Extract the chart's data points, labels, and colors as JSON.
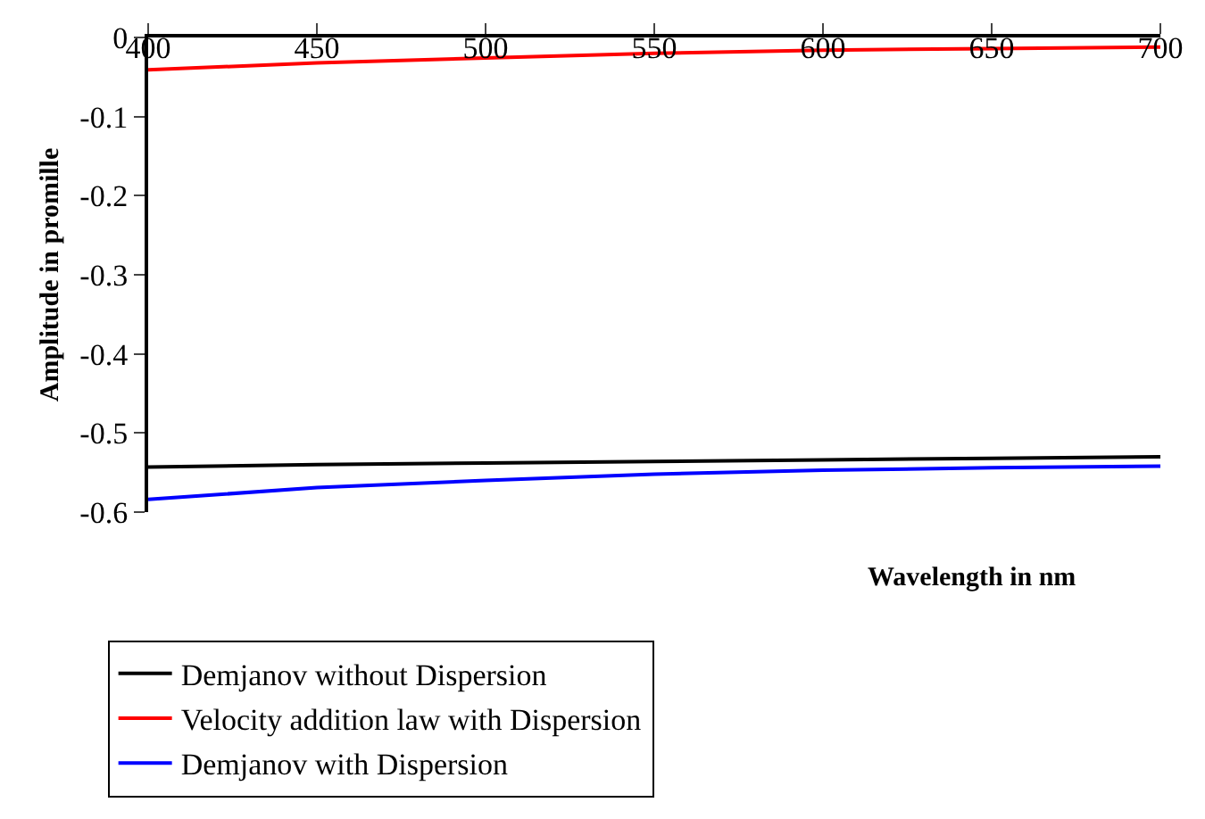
{
  "chart_data": {
    "type": "line",
    "xlabel": "Wavelength in nm",
    "ylabel": "Amplitude in promille",
    "x": [
      400,
      450,
      500,
      550,
      600,
      650,
      700
    ],
    "series": [
      {
        "name": "Demjanov without Dispersion",
        "color": "#000000",
        "values": [
          -0.543,
          -0.54,
          -0.538,
          -0.536,
          -0.534,
          -0.532,
          -0.53
        ]
      },
      {
        "name": "Velocity addition law with Dispersion",
        "color": "#ff0000",
        "values": [
          -0.041,
          -0.032,
          -0.026,
          -0.02,
          -0.016,
          -0.014,
          -0.012
        ]
      },
      {
        "name": "Demjanov with Dispersion",
        "color": "#0000ff",
        "values": [
          -0.584,
          -0.569,
          -0.56,
          -0.552,
          -0.547,
          -0.544,
          -0.542
        ]
      }
    ],
    "xlim": [
      400,
      700
    ],
    "xticks": [
      400,
      450,
      500,
      550,
      600,
      650,
      700
    ],
    "ylim": [
      -0.6,
      0
    ],
    "yticks": [
      0,
      -0.1,
      -0.2,
      -0.3,
      -0.4,
      -0.5,
      -0.6
    ],
    "grid": false,
    "legend": "bottom left",
    "marker": "none",
    "line_style": "solid"
  }
}
